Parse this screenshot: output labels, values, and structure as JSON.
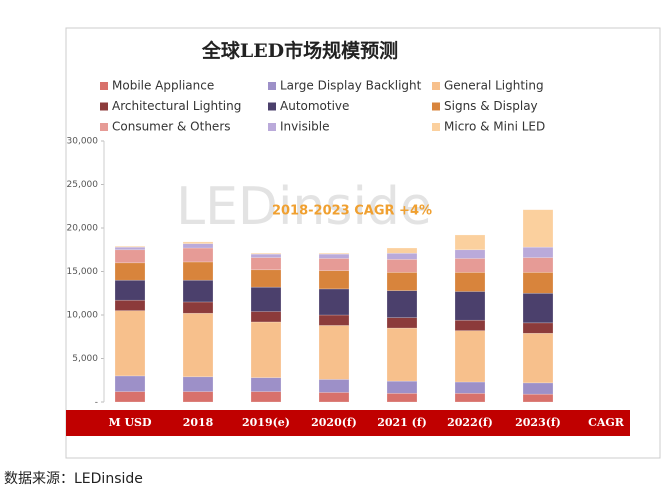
{
  "chart_data": {
    "type": "stacked_bar",
    "title": "全球LED市场规模预测",
    "annotation": "2018-2023 CAGR +4%",
    "watermark": "LEDinside",
    "categories": [
      "M USD",
      "2018",
      "2019(e)",
      "2020(f)",
      "2021 (f)",
      "2022(f)",
      "2023(f)",
      "CAGR"
    ],
    "series": [
      {
        "name": "Mobile Appliance",
        "color": "#d8716b",
        "values": [
          1200,
          1200,
          1200,
          1100,
          1000,
          1000,
          900,
          null
        ]
      },
      {
        "name": "Large Display Backlight",
        "color": "#9d90c8",
        "values": [
          1800,
          1700,
          1600,
          1500,
          1400,
          1300,
          1300,
          null
        ]
      },
      {
        "name": "General Lighting",
        "color": "#f7c08c",
        "values": [
          7500,
          7300,
          6400,
          6200,
          6100,
          5900,
          5700,
          null
        ]
      },
      {
        "name": "Architectural Lighting",
        "color": "#8c3b3b",
        "values": [
          1200,
          1300,
          1200,
          1200,
          1200,
          1200,
          1200,
          null
        ]
      },
      {
        "name": "Automotive",
        "color": "#4b406c",
        "values": [
          2300,
          2500,
          2800,
          3000,
          3100,
          3300,
          3400,
          null
        ]
      },
      {
        "name": "Signs & Display",
        "color": "#d8843c",
        "values": [
          2000,
          2100,
          2000,
          2100,
          2100,
          2200,
          2400,
          null
        ]
      },
      {
        "name": "Consumer & Others",
        "color": "#e69b96",
        "values": [
          1500,
          1600,
          1400,
          1400,
          1500,
          1600,
          1700,
          null
        ]
      },
      {
        "name": "Invisible",
        "color": "#baaada",
        "values": [
          300,
          500,
          400,
          500,
          700,
          1000,
          1200,
          null
        ]
      },
      {
        "name": "Micro & Mini LED",
        "color": "#fbd09e",
        "values": [
          100,
          200,
          100,
          100,
          600,
          1700,
          4300,
          null
        ]
      }
    ],
    "ylim": [
      0,
      30000
    ],
    "yticks": [
      {
        "value": 0,
        "label": "-"
      },
      {
        "value": 5000,
        "label": "5,000"
      },
      {
        "value": 10000,
        "label": "10,000"
      },
      {
        "value": 15000,
        "label": "15,000"
      },
      {
        "value": 20000,
        "label": "20,000"
      },
      {
        "value": 25000,
        "label": "25,000"
      },
      {
        "value": 30000,
        "label": "30,000"
      }
    ],
    "grid": false
  },
  "source": "数据来源：LEDinside"
}
